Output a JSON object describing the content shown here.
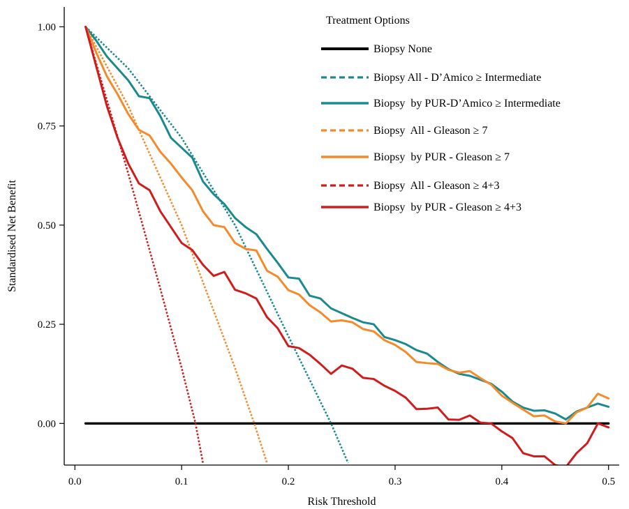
{
  "chart_data": {
    "type": "line",
    "title": "",
    "xlabel": "Risk Threshold",
    "ylabel": "Standardised Net Benefit",
    "xlim": [
      -0.01,
      0.51
    ],
    "ylim": [
      -0.105,
      1.05
    ],
    "x_ticks": [
      0.0,
      0.1,
      0.2,
      0.3,
      0.4,
      0.5
    ],
    "x_tick_labels": [
      "0.0",
      "0.1",
      "0.2",
      "0.3",
      "0.4",
      "0.5"
    ],
    "y_ticks": [
      0.0,
      0.25,
      0.5,
      0.75,
      1.0
    ],
    "y_tick_labels": [
      "0.00",
      "0.25",
      "0.50",
      "0.75",
      "1.00"
    ],
    "grid": false,
    "legend": {
      "title": "Treatment Options",
      "placement": "top-right"
    },
    "series": [
      {
        "name": "Biopsy None",
        "color": "#000000",
        "style": "solid",
        "x": [
          0.01,
          0.5
        ],
        "y": [
          0.0,
          0.0
        ]
      },
      {
        "name": "Biopsy All - D’Amico ≥ Intermediate",
        "color": "#1a8a8e",
        "style": "dotted",
        "x": [
          0.01,
          0.05,
          0.1,
          0.15,
          0.2,
          0.24,
          0.256
        ],
        "y": [
          1.0,
          0.895,
          0.72,
          0.5,
          0.22,
          0.0,
          -0.1
        ]
      },
      {
        "name": "Biopsy  by PUR-D’Amico ≥ Intermediate",
        "color": "#1a8a8e",
        "style": "solid",
        "x": [
          0.01,
          0.02,
          0.03,
          0.04,
          0.05,
          0.06,
          0.07,
          0.08,
          0.09,
          0.1,
          0.11,
          0.12,
          0.13,
          0.14,
          0.15,
          0.16,
          0.17,
          0.18,
          0.19,
          0.2,
          0.21,
          0.22,
          0.23,
          0.24,
          0.25,
          0.26,
          0.27,
          0.28,
          0.29,
          0.3,
          0.31,
          0.32,
          0.33,
          0.34,
          0.35,
          0.36,
          0.37,
          0.38,
          0.39,
          0.4,
          0.41,
          0.42,
          0.43,
          0.44,
          0.45,
          0.46,
          0.47,
          0.48,
          0.49,
          0.5
        ],
        "y": [
          1.0,
          0.965,
          0.925,
          0.895,
          0.865,
          0.825,
          0.82,
          0.775,
          0.72,
          0.695,
          0.67,
          0.61,
          0.578,
          0.553,
          0.518,
          0.495,
          0.477,
          0.44,
          0.405,
          0.368,
          0.365,
          0.322,
          0.315,
          0.29,
          0.278,
          0.266,
          0.255,
          0.25,
          0.218,
          0.21,
          0.2,
          0.185,
          0.176,
          0.155,
          0.137,
          0.125,
          0.12,
          0.11,
          0.1,
          0.08,
          0.055,
          0.04,
          0.032,
          0.033,
          0.025,
          0.01,
          0.03,
          0.04,
          0.05,
          0.042
        ]
      },
      {
        "name": "Biopsy  All - Gleason ≥ 7",
        "color": "#f58a2a",
        "style": "dotted",
        "x": [
          0.01,
          0.05,
          0.1,
          0.15,
          0.168,
          0.18
        ],
        "y": [
          1.0,
          0.8,
          0.5,
          0.14,
          0.0,
          -0.1
        ]
      },
      {
        "name": "Biopsy  by PUR - Gleason ≥ 7",
        "color": "#f58a2a",
        "style": "solid",
        "x": [
          0.01,
          0.02,
          0.03,
          0.04,
          0.05,
          0.06,
          0.07,
          0.08,
          0.09,
          0.1,
          0.11,
          0.12,
          0.13,
          0.14,
          0.15,
          0.16,
          0.17,
          0.18,
          0.19,
          0.2,
          0.21,
          0.22,
          0.23,
          0.24,
          0.25,
          0.26,
          0.27,
          0.28,
          0.29,
          0.3,
          0.31,
          0.32,
          0.33,
          0.34,
          0.35,
          0.36,
          0.37,
          0.38,
          0.39,
          0.4,
          0.41,
          0.42,
          0.43,
          0.44,
          0.45,
          0.46,
          0.47,
          0.48,
          0.49,
          0.5
        ],
        "y": [
          1.0,
          0.935,
          0.875,
          0.83,
          0.78,
          0.74,
          0.726,
          0.685,
          0.655,
          0.62,
          0.588,
          0.535,
          0.5,
          0.495,
          0.455,
          0.44,
          0.436,
          0.385,
          0.37,
          0.336,
          0.325,
          0.298,
          0.28,
          0.257,
          0.26,
          0.255,
          0.238,
          0.232,
          0.21,
          0.198,
          0.18,
          0.155,
          0.152,
          0.15,
          0.135,
          0.128,
          0.132,
          0.114,
          0.098,
          0.07,
          0.052,
          0.035,
          0.018,
          0.02,
          0.005,
          0.0,
          0.028,
          0.04,
          0.075,
          0.063
        ]
      },
      {
        "name": "Biopsy  All - Gleason ≥ 4+3",
        "color": "#d01c1c",
        "style": "dotted",
        "x": [
          0.01,
          0.05,
          0.08,
          0.1,
          0.113,
          0.12
        ],
        "y": [
          1.0,
          0.63,
          0.34,
          0.14,
          0.0,
          -0.1
        ]
      },
      {
        "name": "Biopsy  by PUR - Gleason ≥ 4+3",
        "color": "#d01c1c",
        "style": "solid",
        "x": [
          0.01,
          0.02,
          0.03,
          0.04,
          0.05,
          0.06,
          0.07,
          0.08,
          0.09,
          0.1,
          0.11,
          0.12,
          0.13,
          0.14,
          0.15,
          0.16,
          0.17,
          0.18,
          0.19,
          0.2,
          0.21,
          0.22,
          0.23,
          0.24,
          0.25,
          0.26,
          0.27,
          0.28,
          0.29,
          0.3,
          0.31,
          0.32,
          0.33,
          0.34,
          0.35,
          0.36,
          0.37,
          0.38,
          0.39,
          0.4,
          0.41,
          0.42,
          0.43,
          0.44,
          0.45,
          0.46,
          0.47,
          0.48,
          0.49,
          0.5
        ],
        "y": [
          1.0,
          0.9,
          0.8,
          0.72,
          0.655,
          0.605,
          0.588,
          0.535,
          0.495,
          0.455,
          0.437,
          0.4,
          0.372,
          0.382,
          0.337,
          0.328,
          0.315,
          0.268,
          0.24,
          0.195,
          0.19,
          0.173,
          0.15,
          0.125,
          0.146,
          0.138,
          0.115,
          0.112,
          0.095,
          0.082,
          0.065,
          0.036,
          0.037,
          0.04,
          0.01,
          0.009,
          0.02,
          0.002,
          0.0,
          -0.02,
          -0.037,
          -0.075,
          -0.083,
          -0.083,
          -0.105,
          -0.11,
          -0.075,
          -0.05,
          0.0,
          -0.01
        ]
      }
    ]
  }
}
